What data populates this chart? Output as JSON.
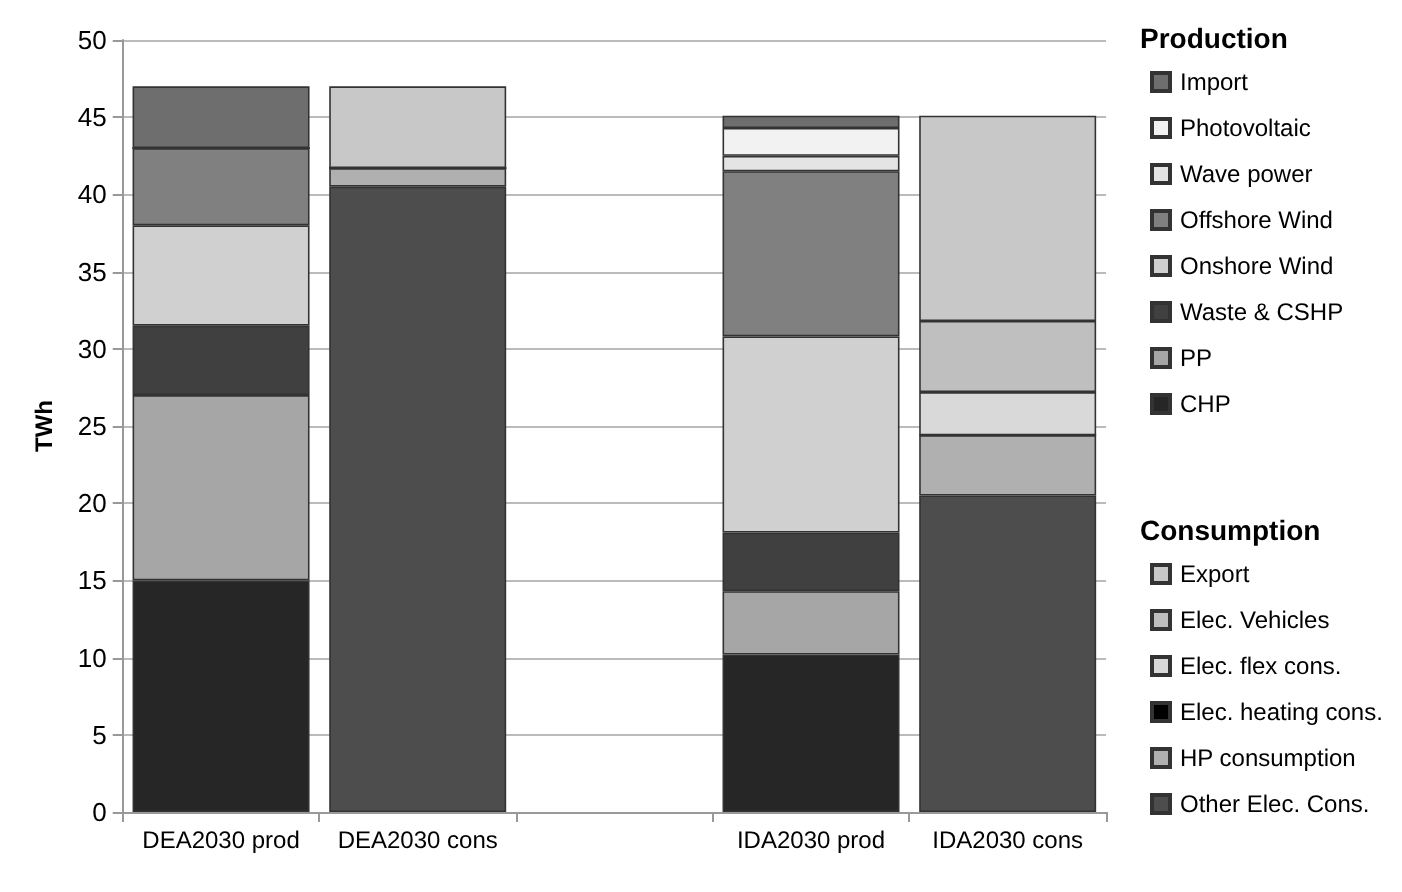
{
  "chart_data": {
    "type": "bar",
    "stacked": true,
    "ylabel": "TWh",
    "categories": [
      "DEA2030 prod",
      "DEA2030 cons",
      null,
      "IDA2030 prod",
      "IDA2030 cons"
    ],
    "ylim": [
      0,
      50
    ],
    "yticks": [
      0,
      5,
      10,
      15,
      20,
      25,
      30,
      35,
      40,
      45,
      50
    ],
    "grid": "y",
    "legend": "right",
    "annotations": [
      "Production",
      "Consumption"
    ],
    "series": [
      {
        "name": "CHP",
        "color": "#262626",
        "values": [
          15,
          null,
          null,
          10.2,
          null
        ]
      },
      {
        "name": "PP",
        "color": "#a6a6a6",
        "values": [
          12,
          null,
          null,
          4.1,
          null
        ]
      },
      {
        "name": "Waste & CSHP",
        "color": "#404040",
        "values": [
          4.5,
          null,
          null,
          3.8,
          null
        ]
      },
      {
        "name": "Onshore Wind",
        "color": "#d0d0d0",
        "values": [
          6.5,
          null,
          null,
          12.7,
          null
        ]
      },
      {
        "name": "Offshore Wind",
        "color": "#808080",
        "values": [
          5,
          null,
          null,
          10.7,
          null
        ]
      },
      {
        "name": "Wave power",
        "color": "#e4e4e4",
        "values": [
          0,
          null,
          null,
          1,
          null
        ]
      },
      {
        "name": "Photovoltaic",
        "color": "#f2f2f2",
        "values": [
          0,
          null,
          null,
          1.8,
          null
        ]
      },
      {
        "name": "Import",
        "color": "#6e6e6e",
        "values": [
          4,
          null,
          null,
          0.8,
          null
        ]
      },
      {
        "name": "Other Elec. Cons.",
        "color": "#4d4d4d",
        "values": [
          null,
          40.5,
          null,
          null,
          20.5
        ]
      },
      {
        "name": "HP consumption",
        "color": "#b0b0b0",
        "values": [
          null,
          1.2,
          null,
          null,
          3.9
        ]
      },
      {
        "name": "Elec. heating cons.",
        "color": "#000000",
        "values": [
          null,
          0,
          null,
          null,
          0
        ]
      },
      {
        "name": "Elec. flex cons.",
        "color": "#d9d9d9",
        "values": [
          null,
          0,
          null,
          null,
          2.8
        ]
      },
      {
        "name": "Elec. Vehicles",
        "color": "#bfbfbf",
        "values": [
          null,
          0,
          null,
          null,
          4.6
        ]
      },
      {
        "name": "Export",
        "color": "#c8c8c8",
        "values": [
          null,
          5.3,
          null,
          null,
          13.3
        ]
      }
    ]
  }
}
